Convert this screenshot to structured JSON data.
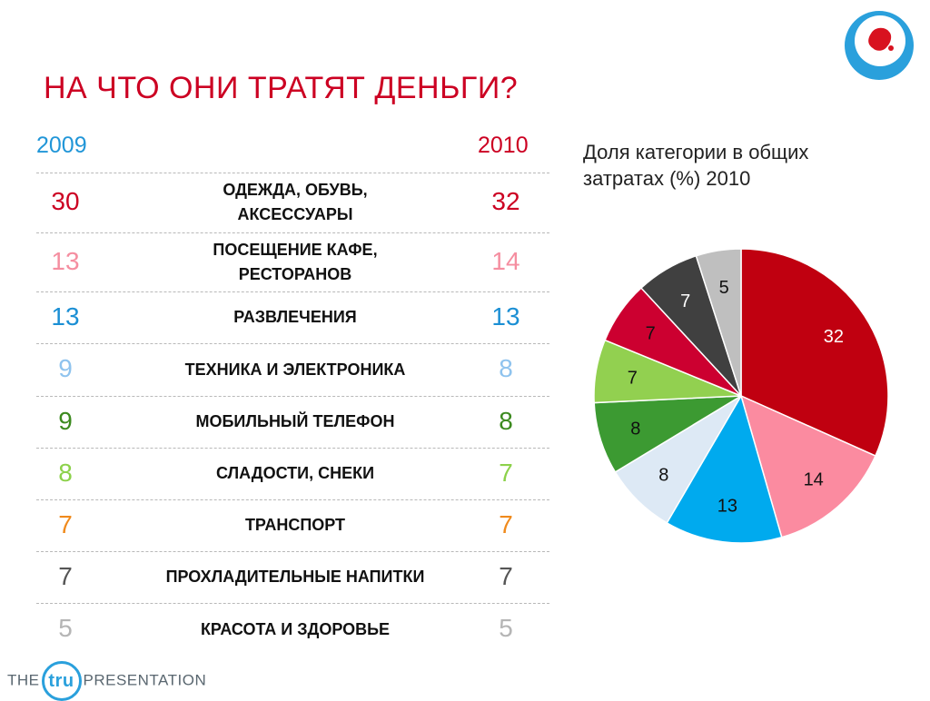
{
  "title": "НА ЧТО ОНИ ТРАТЯТ ДЕНЬГИ?",
  "years": {
    "left": "2009",
    "right": "2010"
  },
  "colors": {
    "title": "#cc0022",
    "year2009": "#2196d8",
    "year2010": "#cc0022"
  },
  "rows": [
    {
      "label": "ОДЕЖДА, ОБУВЬ,\nАКСЕССУАРЫ",
      "v2009": "30",
      "v2010": "32",
      "color": "#cc0022"
    },
    {
      "label": "ПОСЕЩЕНИЕ КАФЕ,\nРЕСТОРАНОВ",
      "v2009": "13",
      "v2010": "14",
      "color": "#f58ea0"
    },
    {
      "label": "РАЗВЛЕЧЕНИЯ",
      "v2009": "13",
      "v2010": "13",
      "color": "#1b8fd4"
    },
    {
      "label": "ТЕХНИКА И ЭЛЕКТРОНИКА",
      "v2009": "9",
      "v2010": "8",
      "color": "#8fc3ee"
    },
    {
      "label": "МОБИЛЬНЫЙ ТЕЛЕФОН",
      "v2009": "9",
      "v2010": "8",
      "color": "#3c8a1f"
    },
    {
      "label": "СЛАДОСТИ, СНЕКИ",
      "v2009": "8",
      "v2010": "7",
      "color": "#8cd14a"
    },
    {
      "label": "ТРАНСПОРТ",
      "v2009": "7",
      "v2010": "7",
      "color": "#f08a1c"
    },
    {
      "label": "ПРОХЛАДИТЕЛЬНЫЕ НАПИТКИ",
      "v2009": "7",
      "v2010": "7",
      "color": "#555555"
    },
    {
      "label": "КРАСОТА И ЗДОРОВЬЕ",
      "v2009": "5",
      "v2010": "5",
      "color": "#b5b5b5"
    }
  ],
  "chart_data": {
    "type": "pie",
    "title": "Доля категории в общих затратах (%) 2010",
    "slices": [
      {
        "value": 32,
        "color": "#c00010",
        "label_color": "#ffffff"
      },
      {
        "value": 14,
        "color": "#fb8ba0",
        "label_color": "#111111"
      },
      {
        "value": 13,
        "color": "#00aaee",
        "label_color": "#111111"
      },
      {
        "value": 8,
        "color": "#dde9f5",
        "label_color": "#111111"
      },
      {
        "value": 8,
        "color": "#3c9a32",
        "label_color": "#111111"
      },
      {
        "value": 7,
        "color": "#92d050",
        "label_color": "#111111"
      },
      {
        "value": 7,
        "color": "#cc0030",
        "label_color": "#111111"
      },
      {
        "value": 7,
        "color": "#404040",
        "label_color": "#ffffff"
      },
      {
        "value": 5,
        "color": "#bfbfbf",
        "label_color": "#111111"
      }
    ]
  },
  "brand": {
    "prefix": "THE",
    "mark": "tru",
    "suffix": "PRESENTATION"
  }
}
